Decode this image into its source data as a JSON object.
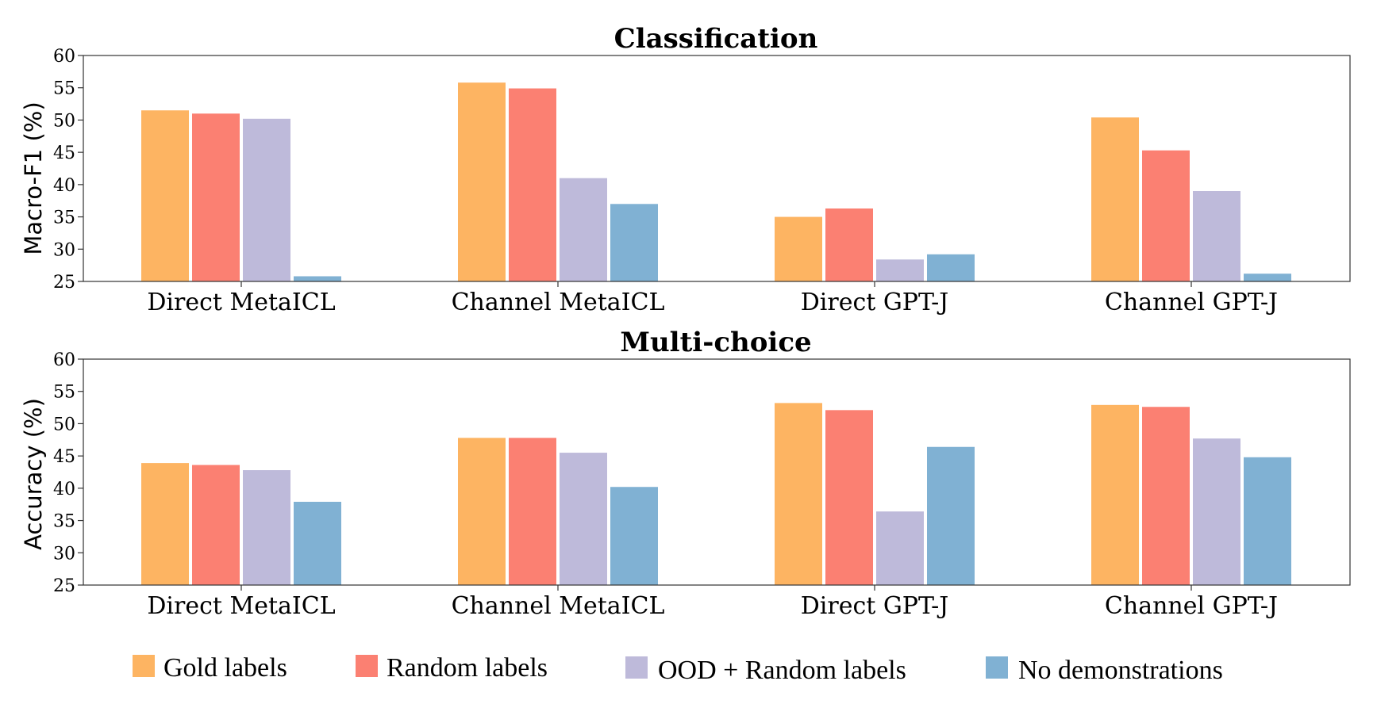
{
  "chart_data": [
    {
      "type": "bar",
      "title": "Classification",
      "ylabel": "Macro-F1 (%)",
      "ylim": [
        25,
        60
      ],
      "yticks": [
        25,
        30,
        35,
        40,
        45,
        50,
        55,
        60
      ],
      "categories": [
        "Direct MetaICL",
        "Channel MetaICL",
        "Direct GPT-J",
        "Channel GPT-J"
      ],
      "series": [
        {
          "name": "Gold labels",
          "color": "#fdb462",
          "values": [
            51.5,
            55.8,
            35.0,
            50.4
          ]
        },
        {
          "name": "Random labels",
          "color": "#fb8072",
          "values": [
            51.0,
            54.9,
            36.3,
            45.3
          ]
        },
        {
          "name": "OOD + Random labels",
          "color": "#bebada",
          "values": [
            50.2,
            41.0,
            28.4,
            39.0
          ]
        },
        {
          "name": "No demonstrations",
          "color": "#80b1d3",
          "values": [
            25.8,
            37.0,
            29.2,
            26.2
          ]
        }
      ],
      "grid": false
    },
    {
      "type": "bar",
      "title": "Multi-choice",
      "ylabel": "Accuracy (%)",
      "ylim": [
        25,
        60
      ],
      "yticks": [
        25,
        30,
        35,
        40,
        45,
        50,
        55,
        60
      ],
      "categories": [
        "Direct MetaICL",
        "Channel MetaICL",
        "Direct GPT-J",
        "Channel GPT-J"
      ],
      "series": [
        {
          "name": "Gold labels",
          "color": "#fdb462",
          "values": [
            43.9,
            47.8,
            53.2,
            52.9
          ]
        },
        {
          "name": "Random labels",
          "color": "#fb8072",
          "values": [
            43.6,
            47.8,
            52.1,
            52.6
          ]
        },
        {
          "name": "OOD + Random labels",
          "color": "#bebada",
          "values": [
            42.8,
            45.5,
            36.4,
            47.7
          ]
        },
        {
          "name": "No demonstrations",
          "color": "#80b1d3",
          "values": [
            37.9,
            40.2,
            46.4,
            44.8
          ]
        }
      ],
      "grid": false
    }
  ],
  "legend": {
    "placement": "bottom",
    "items": [
      {
        "label": "Gold labels",
        "color": "#fdb462"
      },
      {
        "label": "Random labels",
        "color": "#fb8072"
      },
      {
        "label": "OOD + Random labels",
        "color": "#bebada"
      },
      {
        "label": "No demonstrations",
        "color": "#80b1d3"
      }
    ]
  }
}
